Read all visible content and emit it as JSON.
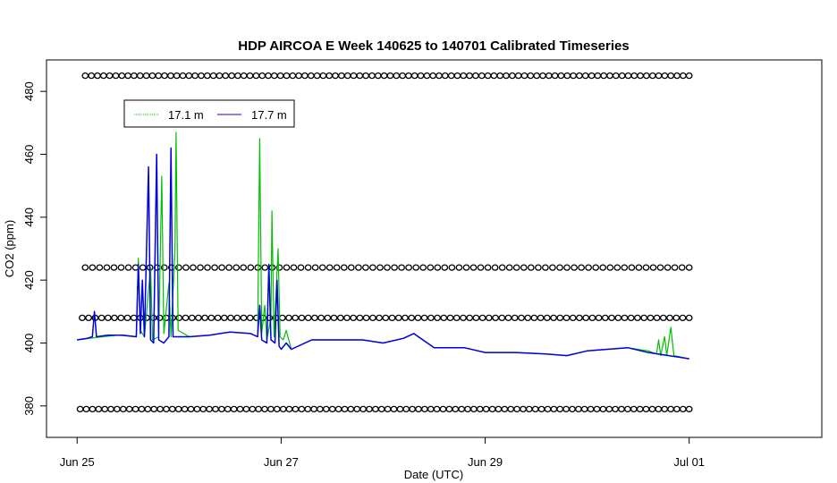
{
  "chart_data": {
    "type": "line",
    "title": "HDP AIRCOA E  Week 140625 to 140701  Calibrated Timeseries",
    "xlabel": "Date (UTC)",
    "ylabel": "CO2 (ppm)",
    "xlim": [
      -0.3,
      7.3
    ],
    "ylim": [
      370,
      490
    ],
    "x_ticks": [
      {
        "label": "Jun 25",
        "value": 0
      },
      {
        "label": "Jun 27",
        "value": 2
      },
      {
        "label": "Jun 29",
        "value": 4
      },
      {
        "label": "Jul 01",
        "value": 6
      }
    ],
    "y_ticks": [
      380,
      400,
      420,
      440,
      460,
      480
    ],
    "legend": {
      "position": "top-left",
      "entries": [
        {
          "label": "17.1 m",
          "color": "#00c000"
        },
        {
          "label": "17.7 m",
          "color": "#0000e0"
        }
      ]
    },
    "series": [
      {
        "name": "17.1 m",
        "color": "#00c000",
        "points": [
          [
            0.0,
            401.0
          ],
          [
            0.2,
            401.8
          ],
          [
            0.4,
            402.5
          ],
          [
            0.58,
            402.0
          ],
          [
            0.6,
            427.0
          ],
          [
            0.62,
            404.0
          ],
          [
            0.66,
            402.0
          ],
          [
            0.72,
            424.0
          ],
          [
            0.74,
            401.0
          ],
          [
            0.8,
            402.0
          ],
          [
            0.83,
            453.0
          ],
          [
            0.85,
            403.0
          ],
          [
            0.9,
            419.0
          ],
          [
            0.92,
            402.0
          ],
          [
            0.96,
            430.0
          ],
          [
            0.97,
            467.0
          ],
          [
            0.99,
            404.0
          ],
          [
            1.1,
            402.0
          ],
          [
            1.3,
            402.5
          ],
          [
            1.5,
            403.5
          ],
          [
            1.7,
            403.0
          ],
          [
            1.77,
            402.0
          ],
          [
            1.79,
            465.0
          ],
          [
            1.81,
            403.0
          ],
          [
            1.84,
            412.0
          ],
          [
            1.86,
            401.0
          ],
          [
            1.9,
            408.0
          ],
          [
            1.91,
            442.0
          ],
          [
            1.93,
            402.0
          ],
          [
            1.97,
            430.0
          ],
          [
            1.99,
            402.0
          ],
          [
            2.02,
            401.0
          ],
          [
            2.05,
            404.0
          ],
          [
            2.1,
            398.0
          ],
          [
            2.3,
            401.0
          ],
          [
            2.6,
            401.0
          ],
          [
            2.8,
            401.0
          ],
          [
            3.0,
            400.0
          ],
          [
            3.2,
            401.5
          ],
          [
            3.3,
            403.0
          ],
          [
            3.5,
            398.5
          ],
          [
            3.8,
            398.5
          ],
          [
            4.0,
            397.0
          ],
          [
            4.3,
            397.0
          ],
          [
            4.6,
            396.5
          ],
          [
            4.8,
            396.0
          ],
          [
            5.0,
            397.5
          ],
          [
            5.2,
            398.0
          ],
          [
            5.4,
            398.5
          ],
          [
            5.6,
            397.5
          ],
          [
            5.68,
            396.5
          ],
          [
            5.7,
            401.0
          ],
          [
            5.72,
            396.0
          ],
          [
            5.76,
            402.0
          ],
          [
            5.78,
            396.0
          ],
          [
            5.82,
            405.0
          ],
          [
            5.85,
            396.0
          ],
          [
            6.0,
            395.0
          ]
        ]
      },
      {
        "name": "17.7 m",
        "color": "#0000e0",
        "points": [
          [
            0.0,
            401.0
          ],
          [
            0.1,
            401.5
          ],
          [
            0.15,
            402.0
          ],
          [
            0.17,
            410.0
          ],
          [
            0.19,
            402.0
          ],
          [
            0.3,
            402.5
          ],
          [
            0.45,
            402.5
          ],
          [
            0.58,
            402.0
          ],
          [
            0.6,
            425.0
          ],
          [
            0.62,
            403.0
          ],
          [
            0.64,
            420.0
          ],
          [
            0.66,
            402.0
          ],
          [
            0.7,
            456.0
          ],
          [
            0.72,
            401.0
          ],
          [
            0.75,
            400.0
          ],
          [
            0.78,
            460.0
          ],
          [
            0.8,
            401.0
          ],
          [
            0.85,
            400.0
          ],
          [
            0.9,
            402.0
          ],
          [
            0.92,
            462.0
          ],
          [
            0.94,
            402.0
          ],
          [
            1.1,
            402.0
          ],
          [
            1.3,
            402.5
          ],
          [
            1.5,
            403.5
          ],
          [
            1.7,
            403.0
          ],
          [
            1.77,
            402.0
          ],
          [
            1.79,
            412.0
          ],
          [
            1.81,
            401.0
          ],
          [
            1.86,
            400.0
          ],
          [
            1.88,
            425.0
          ],
          [
            1.9,
            401.0
          ],
          [
            1.94,
            400.0
          ],
          [
            1.96,
            420.0
          ],
          [
            1.98,
            399.0
          ],
          [
            2.0,
            398.0
          ],
          [
            2.05,
            400.0
          ],
          [
            2.1,
            398.0
          ],
          [
            2.3,
            401.0
          ],
          [
            2.6,
            401.0
          ],
          [
            2.8,
            401.0
          ],
          [
            3.0,
            400.0
          ],
          [
            3.2,
            401.5
          ],
          [
            3.3,
            403.0
          ],
          [
            3.5,
            398.5
          ],
          [
            3.8,
            398.5
          ],
          [
            4.0,
            397.0
          ],
          [
            4.3,
            397.0
          ],
          [
            4.6,
            396.5
          ],
          [
            4.8,
            396.0
          ],
          [
            5.0,
            397.5
          ],
          [
            5.2,
            398.0
          ],
          [
            5.4,
            398.5
          ],
          [
            5.6,
            397.0
          ],
          [
            5.8,
            396.0
          ],
          [
            6.0,
            395.0
          ]
        ]
      }
    ],
    "flag_rows": [
      {
        "y": 485,
        "x_start": 0.08,
        "x_end": 6.0,
        "count": 100
      },
      {
        "y": 424,
        "x_start": 0.08,
        "x_end": 6.0,
        "count": 85
      },
      {
        "y": 408,
        "x_start": 0.05,
        "x_end": 6.0,
        "count": 95
      },
      {
        "y": 379,
        "x_start": 0.03,
        "x_end": 6.0,
        "count": 100
      }
    ]
  }
}
